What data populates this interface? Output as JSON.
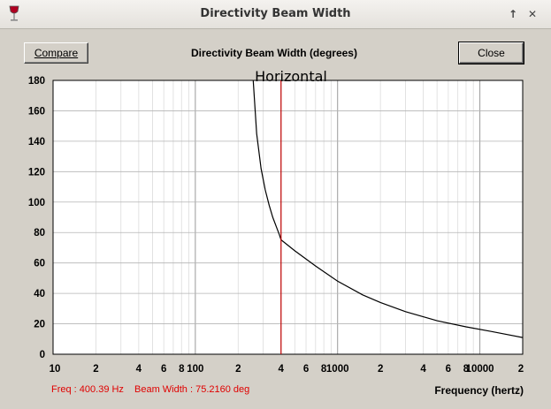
{
  "window": {
    "title": "Directivity Beam Width"
  },
  "buttons": {
    "compare": "Compare",
    "close": "Close"
  },
  "title_bar": {
    "up_glyph": "↑",
    "close_glyph": "✕"
  },
  "status": {
    "freq": "Freq : 400.39 Hz",
    "beam_width": "Beam Width : 75.2160 deg"
  },
  "colors": {
    "curve": "#000000",
    "cursor": "#c00000",
    "grid": "#b4b4b4",
    "status_text": "#e00000"
  },
  "chart_data": {
    "type": "line",
    "title": "Directivity Beam Width (degrees)",
    "subtitle": "Horizontal",
    "xlabel": "Frequency (hertz)",
    "ylabel": "",
    "xscale": "log",
    "xlim": [
      10,
      20000
    ],
    "ylim": [
      0,
      180
    ],
    "yticks": [
      0,
      20,
      40,
      60,
      80,
      100,
      120,
      140,
      160,
      180
    ],
    "xticks": [
      {
        "value": 10,
        "label": "10"
      },
      {
        "value": 20,
        "label": "2"
      },
      {
        "value": 40,
        "label": "4"
      },
      {
        "value": 60,
        "label": "6"
      },
      {
        "value": 80,
        "label": "8"
      },
      {
        "value": 100,
        "label": "100"
      },
      {
        "value": 200,
        "label": "2"
      },
      {
        "value": 400,
        "label": "4"
      },
      {
        "value": 600,
        "label": "6"
      },
      {
        "value": 800,
        "label": "8"
      },
      {
        "value": 1000,
        "label": "1000"
      },
      {
        "value": 2000,
        "label": "2"
      },
      {
        "value": 4000,
        "label": "4"
      },
      {
        "value": 6000,
        "label": "6"
      },
      {
        "value": 8000,
        "label": "8"
      },
      {
        "value": 10000,
        "label": "10000"
      },
      {
        "value": 20000,
        "label": "2"
      }
    ],
    "grid": true,
    "cursor_x": 400.39,
    "series": [
      {
        "x": [
          255,
          270,
          290,
          310,
          330,
          350,
          370,
          390,
          400.39,
          500,
          700,
          1000,
          1500,
          2000,
          3000,
          5000,
          8000,
          12000,
          20000
        ],
        "y": [
          180,
          145,
          122,
          108,
          98,
          90,
          84,
          78.5,
          75.2,
          68,
          58,
          48,
          39,
          34,
          28,
          22,
          18,
          15,
          11
        ]
      }
    ]
  }
}
